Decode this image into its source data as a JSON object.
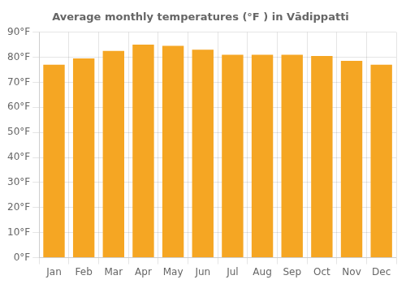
{
  "chart_data": {
    "type": "bar",
    "title": "Average monthly temperatures (°F ) in Vādippatti",
    "categories": [
      "Jan",
      "Feb",
      "Mar",
      "Apr",
      "May",
      "Jun",
      "Jul",
      "Aug",
      "Sep",
      "Oct",
      "Nov",
      "Dec"
    ],
    "values": [
      77,
      79.5,
      82.5,
      85,
      84.5,
      83,
      81,
      81,
      81,
      80.5,
      78.5,
      77
    ],
    "color": "#F5A623",
    "ylim": [
      0,
      90
    ],
    "yticks": [
      {
        "value": 0,
        "label": "0°F"
      },
      {
        "value": 10,
        "label": "10°F"
      },
      {
        "value": 20,
        "label": "20°F"
      },
      {
        "value": 30,
        "label": "30°F"
      },
      {
        "value": 40,
        "label": "40°F"
      },
      {
        "value": 50,
        "label": "50°F"
      },
      {
        "value": 60,
        "label": "60°F"
      },
      {
        "value": 70,
        "label": "70°F"
      },
      {
        "value": 80,
        "label": "80°F"
      },
      {
        "value": 90,
        "label": "90°F"
      }
    ],
    "grid": true
  }
}
